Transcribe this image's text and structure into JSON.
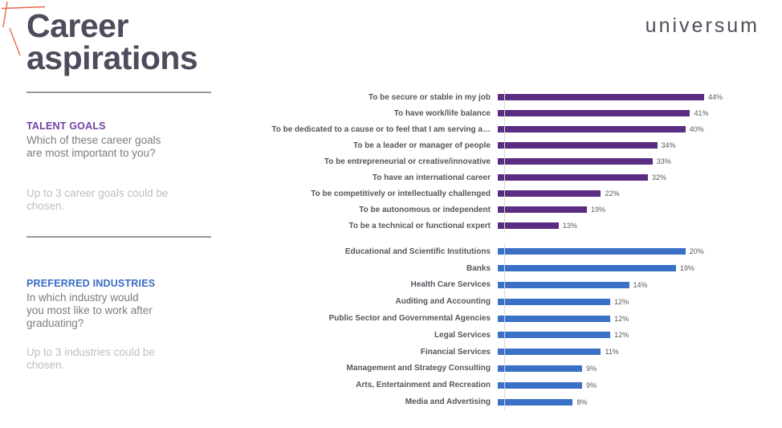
{
  "slide": {
    "title_line1": "Career",
    "title_line2": "aspirations",
    "logo_text": "universum"
  },
  "colors": {
    "talent_goals_bar": "#5B2D82",
    "industries_bar": "#3A71C6",
    "title_text": "#4C4C5C",
    "accent_coral": "#E9694B",
    "axis_line": "#D9D9D9"
  },
  "sidebar": {
    "sections": [
      {
        "heading": "TALENT GOALS",
        "question": "Which of these career goals\nare most important to you?",
        "note": "Up to 3 career goals could be\nchosen."
      },
      {
        "heading": "PREFERRED INDUSTRIES",
        "question": "In which industry would\nyou most like to work after\ngraduating?",
        "note": "Up to 3 industries could be\nchosen."
      }
    ]
  },
  "chart_data": [
    {
      "type": "bar",
      "orientation": "horizontal",
      "title": "Talent goals",
      "categories": [
        "To be secure or stable in my job",
        "To have work/life balance",
        "To be dedicated to a cause or to feel that I am serving a…",
        "To be a leader or manager of people",
        "To be entrepreneurial or creative/innovative",
        "To have an international career",
        "To be competitively or intellectually challenged",
        "To be autonomous or independent",
        "To be a technical or functional expert"
      ],
      "values": [
        44,
        41,
        40,
        34,
        33,
        32,
        22,
        19,
        13
      ],
      "value_labels": [
        "44%",
        "41%",
        "40%",
        "34%",
        "33%",
        "32%",
        "22%",
        "19%",
        "13%"
      ],
      "bar_color": "#5B2D82",
      "xlim": [
        0,
        50
      ],
      "grid": false,
      "legend": false,
      "value_labels_position": "outside-end"
    },
    {
      "type": "bar",
      "orientation": "horizontal",
      "title": "Preferred industries",
      "categories": [
        "Educational and Scientific Institutions",
        "Banks",
        "Health Care Services",
        "Auditing and Accounting",
        "Public Sector and Governmental Agencies",
        "Legal Services",
        "Financial Services",
        "Management and Strategy Consulting",
        "Arts, Entertainment and Recreation",
        "Media and Advertising"
      ],
      "values": [
        20,
        19,
        14,
        12,
        12,
        12,
        11,
        9,
        9,
        8
      ],
      "value_labels": [
        "20%",
        "19%",
        "14%",
        "12%",
        "12%",
        "12%",
        "11%",
        "9%",
        "9%",
        "8%"
      ],
      "bar_color": "#3A71C6",
      "xlim": [
        0,
        25
      ],
      "grid": false,
      "legend": false,
      "value_labels_position": "outside-end"
    }
  ]
}
